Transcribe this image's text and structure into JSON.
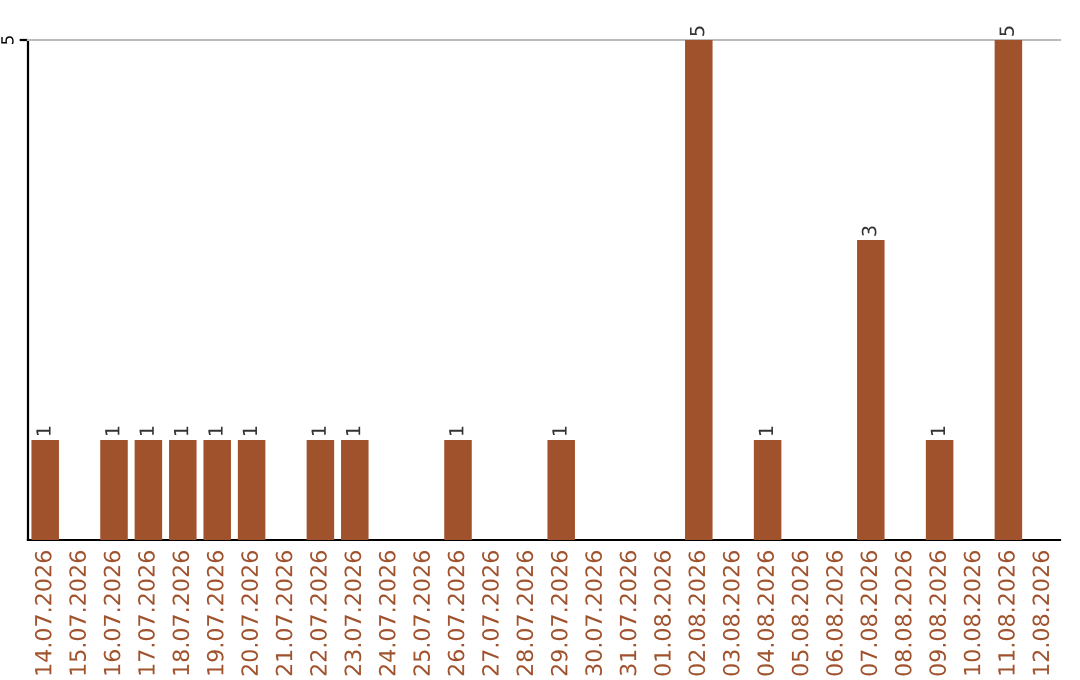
{
  "chart_data": {
    "type": "bar",
    "categories": [
      "14.07.2026",
      "15.07.2026",
      "16.07.2026",
      "17.07.2026",
      "18.07.2026",
      "19.07.2026",
      "20.07.2026",
      "21.07.2026",
      "22.07.2026",
      "23.07.2026",
      "24.07.2026",
      "25.07.2026",
      "26.07.2026",
      "27.07.2026",
      "28.07.2026",
      "29.07.2026",
      "30.07.2026",
      "31.07.2026",
      "01.08.2026",
      "02.08.2026",
      "03.08.2026",
      "04.08.2026",
      "05.08.2026",
      "06.08.2026",
      "07.08.2026",
      "08.08.2026",
      "09.08.2026",
      "10.08.2026",
      "11.08.2026",
      "12.08.2026"
    ],
    "values": [
      1,
      0,
      1,
      1,
      1,
      1,
      1,
      0,
      1,
      1,
      0,
      0,
      1,
      0,
      0,
      1,
      0,
      0,
      0,
      5,
      0,
      1,
      0,
      0,
      3,
      0,
      1,
      0,
      5,
      0
    ],
    "value_labels": [
      "1",
      null,
      "1",
      "1",
      "1",
      "1",
      "1",
      null,
      "1",
      "1",
      null,
      null,
      "1",
      null,
      null,
      "1",
      null,
      null,
      null,
      "5",
      null,
      "1",
      null,
      null,
      "3",
      null,
      "1",
      null,
      "5",
      null
    ],
    "color": "#a0522d",
    "ylim": [
      0,
      5
    ],
    "yticks": [
      5
    ]
  }
}
